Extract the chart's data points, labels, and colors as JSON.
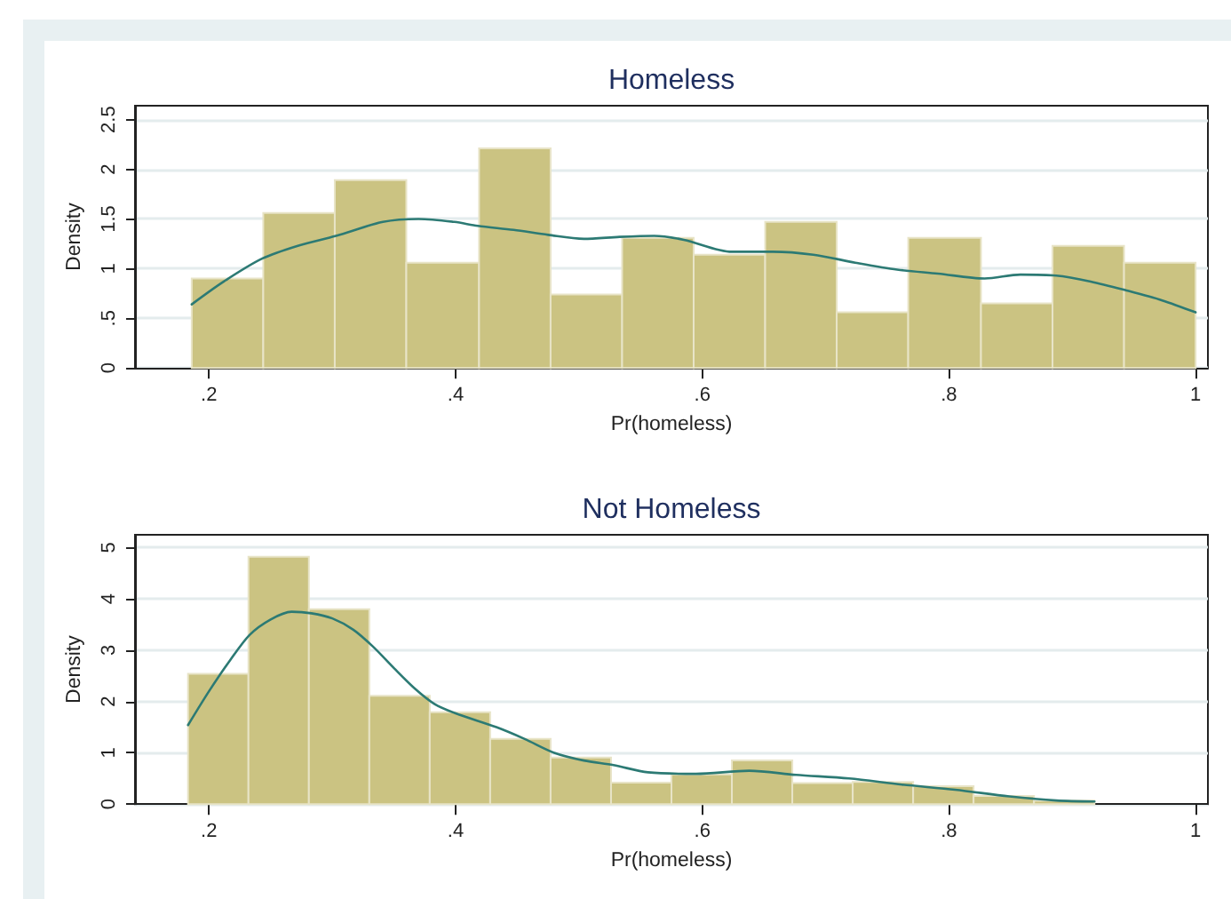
{
  "chart_data": [
    {
      "type": "histogram",
      "title": "Homeless",
      "xlabel": "Pr(homeless)",
      "ylabel": "Density",
      "series": [
        {
          "color": "#cbc382",
          "bins": [
            0.186,
            0.244,
            0.302,
            0.36,
            0.419,
            0.477,
            0.535,
            0.593,
            0.651,
            0.709,
            0.767,
            0.826,
            0.884,
            0.942,
            1
          ],
          "values": [
            0.9,
            1.56,
            1.89,
            1.06,
            2.21,
            0.74,
            1.31,
            1.14,
            1.47,
            0.56,
            1.31,
            0.65,
            1.23,
            1.06
          ]
        },
        {
          "type": "line",
          "color": "#2c7a74",
          "x": [
            0.186,
            0.212,
            0.243,
            0.272,
            0.303,
            0.341,
            0.37,
            0.399,
            0.418,
            0.447,
            0.475,
            0.504,
            0.533,
            0.561,
            0.585,
            0.624,
            0.657,
            0.69,
            0.724,
            0.758,
            0.791,
            0.829,
            0.858,
            0.887,
            0.915,
            0.944,
            0.973,
            1
          ],
          "values": [
            0.64,
            0.87,
            1.1,
            1.23,
            1.33,
            1.47,
            1.5,
            1.47,
            1.43,
            1.39,
            1.34,
            1.3,
            1.32,
            1.33,
            1.29,
            1.17,
            1.17,
            1.14,
            1.06,
            0.99,
            0.95,
            0.9,
            0.94,
            0.93,
            0.87,
            0.78,
            0.68,
            0.56
          ]
        }
      ],
      "xlim": [
        0.14,
        1.01
      ],
      "xticks": [
        {
          "value": 0.2,
          "label": ".2"
        },
        {
          "value": 0.4,
          "label": ".4"
        },
        {
          "value": 0.6,
          "label": ".6"
        },
        {
          "value": 0.8,
          "label": ".8"
        },
        1
      ],
      "ylim": [
        0,
        2.64
      ],
      "yticks": [
        0,
        {
          "value": 0.5,
          "label": ".5"
        },
        1,
        1.5,
        2,
        2.5
      ],
      "grid": "y"
    },
    {
      "type": "histogram",
      "title": "Not Homeless",
      "xlabel": "Pr(homeless)",
      "ylabel": "Density",
      "series": [
        {
          "color": "#cbc382",
          "bins": [
            0.183,
            0.232,
            0.281,
            0.33,
            0.379,
            0.428,
            0.477,
            0.526,
            0.575,
            0.624,
            0.673,
            0.722,
            0.771,
            0.82,
            0.869,
            0.918
          ],
          "values": [
            2.54,
            4.82,
            3.8,
            2.11,
            1.79,
            1.27,
            0.91,
            0.42,
            0.58,
            0.85,
            0.41,
            0.43,
            0.35,
            0.16,
            0.07
          ]
        },
        {
          "type": "line",
          "color": "#2c7a74",
          "x": [
            0.183,
            0.2,
            0.217,
            0.233,
            0.25,
            0.267,
            0.283,
            0.3,
            0.317,
            0.333,
            0.35,
            0.367,
            0.383,
            0.4,
            0.433,
            0.456,
            0.48,
            0.504,
            0.528,
            0.556,
            0.595,
            0.638,
            0.676,
            0.719,
            0.762,
            0.805,
            0.849,
            0.887,
            0.918
          ],
          "values": [
            1.54,
            2.2,
            2.8,
            3.3,
            3.6,
            3.75,
            3.72,
            3.62,
            3.4,
            3.07,
            2.65,
            2.25,
            1.95,
            1.77,
            1.5,
            1.27,
            1,
            0.85,
            0.76,
            0.62,
            0.59,
            0.65,
            0.57,
            0.5,
            0.38,
            0.28,
            0.15,
            0.07,
            0.05
          ]
        }
      ],
      "xlim": [
        0.14,
        1.01
      ],
      "xticks": [
        {
          "value": 0.2,
          "label": ".2"
        },
        {
          "value": 0.4,
          "label": ".4"
        },
        {
          "value": 0.6,
          "label": ".6"
        },
        {
          "value": 0.8,
          "label": ".8"
        },
        1
      ],
      "ylim": [
        0,
        5.25
      ],
      "yticks": [
        0,
        1,
        2,
        3,
        4,
        5
      ],
      "grid": "y"
    }
  ]
}
